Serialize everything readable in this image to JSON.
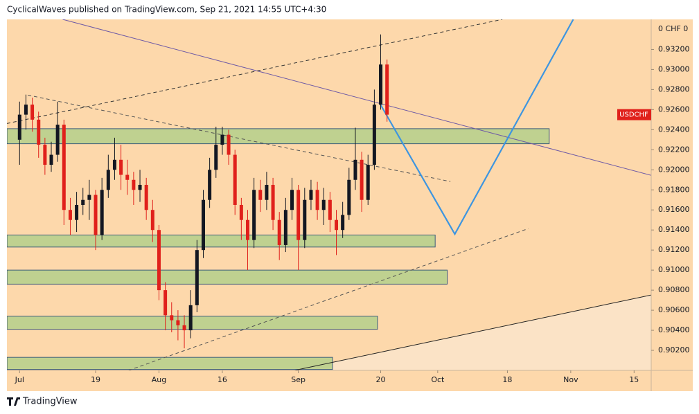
{
  "header": {
    "title": "CyclicalWaves published on TradingView.com, Sep 21, 2021 14:55 UTC+4:30"
  },
  "footer": {
    "brand": "TradingView"
  },
  "chart_data": {
    "type": "candlestick",
    "symbol": "USDCHF",
    "axis_header": "0 CHF 0",
    "up_color": "#131722",
    "down_color": "#e0201b",
    "x": [
      0,
      1,
      2,
      3,
      4,
      5,
      6,
      7,
      8,
      9,
      10,
      11,
      12,
      13,
      14,
      15,
      16,
      17,
      18,
      19,
      20,
      21,
      22,
      23,
      24,
      25,
      26,
      27,
      28,
      29,
      30,
      31,
      32,
      33,
      34,
      35,
      36,
      37,
      38,
      39,
      40,
      41,
      42,
      43,
      44,
      45,
      46,
      47,
      48,
      49,
      50,
      51,
      52,
      53,
      54,
      55,
      56,
      57,
      58
    ],
    "open": [
      0.923,
      0.9255,
      0.9265,
      0.925,
      0.9225,
      0.9205,
      0.9215,
      0.9245,
      0.916,
      0.915,
      0.9165,
      0.917,
      0.9175,
      0.9135,
      0.918,
      0.92,
      0.921,
      0.9195,
      0.919,
      0.918,
      0.9185,
      0.916,
      0.914,
      0.908,
      0.9055,
      0.905,
      0.9045,
      0.904,
      0.9065,
      0.912,
      0.917,
      0.92,
      0.9225,
      0.9235,
      0.9215,
      0.9165,
      0.915,
      0.913,
      0.918,
      0.917,
      0.9185,
      0.915,
      0.9125,
      0.916,
      0.918,
      0.913,
      0.917,
      0.918,
      0.916,
      0.917,
      0.915,
      0.914,
      0.9155,
      0.919,
      0.921,
      0.917,
      0.9205,
      0.9265,
      0.9305
    ],
    "high": [
      0.9268,
      0.9275,
      0.9272,
      0.9258,
      0.9232,
      0.9228,
      0.9268,
      0.925,
      0.9172,
      0.9178,
      0.9182,
      0.919,
      0.918,
      0.9192,
      0.9215,
      0.9232,
      0.9225,
      0.921,
      0.9198,
      0.92,
      0.9192,
      0.917,
      0.9145,
      0.9088,
      0.9068,
      0.906,
      0.9055,
      0.908,
      0.913,
      0.918,
      0.9212,
      0.9243,
      0.9243,
      0.924,
      0.922,
      0.9172,
      0.916,
      0.9192,
      0.919,
      0.9198,
      0.9192,
      0.9158,
      0.9172,
      0.9192,
      0.9185,
      0.9182,
      0.919,
      0.9188,
      0.9182,
      0.9178,
      0.916,
      0.9168,
      0.9202,
      0.9242,
      0.9218,
      0.9215,
      0.928,
      0.9335,
      0.931
    ],
    "low": [
      0.9205,
      0.924,
      0.9238,
      0.9212,
      0.9195,
      0.9198,
      0.9208,
      0.9145,
      0.9135,
      0.9138,
      0.9155,
      0.915,
      0.912,
      0.913,
      0.9172,
      0.919,
      0.918,
      0.9175,
      0.9165,
      0.9168,
      0.915,
      0.9128,
      0.907,
      0.904,
      0.9038,
      0.903,
      0.9022,
      0.9032,
      0.9058,
      0.9112,
      0.9162,
      0.9192,
      0.9215,
      0.9205,
      0.9155,
      0.913,
      0.91,
      0.9122,
      0.9158,
      0.916,
      0.914,
      0.911,
      0.9118,
      0.915,
      0.91,
      0.9122,
      0.916,
      0.915,
      0.9145,
      0.9138,
      0.9115,
      0.9132,
      0.915,
      0.918,
      0.9158,
      0.9165,
      0.92,
      0.926,
      0.9248
    ],
    "close": [
      0.9255,
      0.9265,
      0.925,
      0.9225,
      0.9205,
      0.9215,
      0.9245,
      0.916,
      0.915,
      0.9165,
      0.917,
      0.9175,
      0.9135,
      0.918,
      0.92,
      0.921,
      0.9195,
      0.919,
      0.918,
      0.9185,
      0.916,
      0.914,
      0.908,
      0.9055,
      0.905,
      0.9045,
      0.904,
      0.9065,
      0.912,
      0.917,
      0.92,
      0.9225,
      0.9235,
      0.9215,
      0.9165,
      0.915,
      0.913,
      0.918,
      0.917,
      0.9185,
      0.915,
      0.9125,
      0.916,
      0.918,
      0.913,
      0.917,
      0.918,
      0.916,
      0.917,
      0.915,
      0.914,
      0.9155,
      0.919,
      0.921,
      0.917,
      0.9205,
      0.9265,
      0.9305,
      0.9255
    ],
    "xlim": [
      -2,
      99.7
    ],
    "ylim": [
      0.9,
      0.935
    ],
    "xticks": [
      {
        "value": 0,
        "label": "Jul"
      },
      {
        "value": 12,
        "label": "19"
      },
      {
        "value": 22,
        "label": "Aug"
      },
      {
        "value": 32,
        "label": "16"
      },
      {
        "value": 44,
        "label": "Sep"
      },
      {
        "value": 57,
        "label": "20"
      },
      {
        "value": 66,
        "label": "Oct"
      },
      {
        "value": 77,
        "label": "18"
      },
      {
        "value": 87,
        "label": "Nov"
      },
      {
        "value": 97,
        "label": "15"
      }
    ],
    "yticks": [
      {
        "value": 0.902,
        "label": "0.90200"
      },
      {
        "value": 0.904,
        "label": "0.90400"
      },
      {
        "value": 0.906,
        "label": "0.90600"
      },
      {
        "value": 0.908,
        "label": "0.90800"
      },
      {
        "value": 0.91,
        "label": "0.91000"
      },
      {
        "value": 0.912,
        "label": "0.91200"
      },
      {
        "value": 0.914,
        "label": "0.91400"
      },
      {
        "value": 0.916,
        "label": "0.91600"
      },
      {
        "value": 0.918,
        "label": "0.91800"
      },
      {
        "value": 0.92,
        "label": "0.92000"
      },
      {
        "value": 0.922,
        "label": "0.92200"
      },
      {
        "value": 0.924,
        "label": "0.92400"
      },
      {
        "value": 0.926,
        "label": "0.92600"
      },
      {
        "value": 0.928,
        "label": "0.92800"
      },
      {
        "value": 0.93,
        "label": "0.93000"
      },
      {
        "value": 0.932,
        "label": "0.93200"
      }
    ],
    "zone_color": "#bfd190",
    "zones": [
      {
        "x": [
          -2,
          83.6
        ],
        "y": [
          0.9226,
          0.9241
        ]
      },
      {
        "x": [
          -2,
          65.6
        ],
        "y": [
          0.9123,
          0.9135
        ]
      },
      {
        "x": [
          -2,
          67.5
        ],
        "y": [
          0.9086,
          0.91
        ]
      },
      {
        "x": [
          -2,
          56.5
        ],
        "y": [
          0.9041,
          0.9054
        ]
      },
      {
        "x": [
          -2,
          49.4
        ],
        "y": [
          0.9001,
          0.9013
        ]
      }
    ],
    "lines": [
      {
        "color": "#6f5aa6",
        "dash": false,
        "points": [
          [
            6.8,
            0.935
          ],
          [
            99.7,
            0.91945
          ]
        ]
      },
      {
        "color": "#333333",
        "dash": true,
        "points": [
          [
            -2,
            0.92462
          ],
          [
            76.2,
            0.935
          ]
        ]
      },
      {
        "color": "#555555",
        "dash": true,
        "points": [
          [
            1.3,
            0.92745
          ],
          [
            68,
            0.91883
          ]
        ]
      },
      {
        "color": "#555555",
        "dash": true,
        "points": [
          [
            17.2,
            0.9
          ],
          [
            80.3,
            0.91414
          ]
        ]
      },
      {
        "color": "#222222",
        "dash": false,
        "points": [
          [
            43.4,
            0.9
          ],
          [
            99.7,
            0.90752
          ]
        ]
      },
      {
        "color": "#3d95e0",
        "dash": false,
        "points": [
          [
            56.8,
            0.92669
          ],
          [
            68.7,
            0.91359
          ],
          [
            87.4,
            0.935
          ]
        ]
      }
    ]
  }
}
